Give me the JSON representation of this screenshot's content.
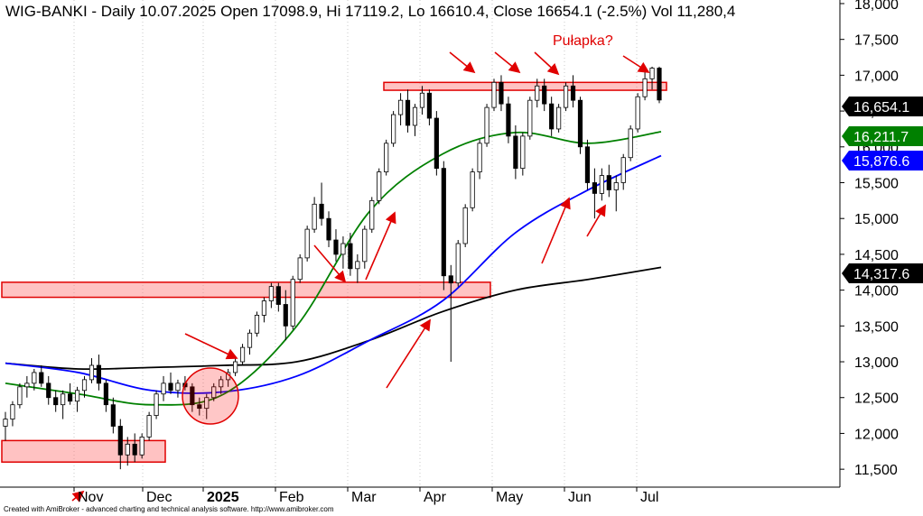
{
  "chart_data": {
    "type": "candlestick",
    "title": "WIG-BANKI - Daily 10.07.2025 Open 17098.9, Hi 17119.2, Lo 16610.4, Close 16654.1 (-2.5%) Vol 11,280,4",
    "footer": "Created with AmiBroker - advanced charting and technical analysis software. http://www.amibroker.com",
    "annotation": "Pułapka?",
    "ylim": [
      11250,
      18050
    ],
    "yticks": [
      {
        "value": 11500,
        "label": "11,500"
      },
      {
        "value": 12000,
        "label": "12,000"
      },
      {
        "value": 12500,
        "label": "12,500"
      },
      {
        "value": 13000,
        "label": "13,000"
      },
      {
        "value": 13500,
        "label": "13,500"
      },
      {
        "value": 14000,
        "label": "14,000"
      },
      {
        "value": 14500,
        "label": "14,500"
      },
      {
        "value": 15000,
        "label": "15,000"
      },
      {
        "value": 15500,
        "label": "15,500"
      },
      {
        "value": 16000,
        "label": "16,000"
      },
      {
        "value": 16500,
        "label": "16,500"
      },
      {
        "value": 17000,
        "label": "17,000"
      },
      {
        "value": 17500,
        "label": "17,500"
      },
      {
        "value": 18000,
        "label": "18,000"
      }
    ],
    "xticks": [
      {
        "label": "Nov",
        "bold": false
      },
      {
        "label": "Dec",
        "bold": false
      },
      {
        "label": "2025",
        "bold": true
      },
      {
        "label": "Feb",
        "bold": false
      },
      {
        "label": "Mar",
        "bold": false
      },
      {
        "label": "Apr",
        "bold": false
      },
      {
        "label": "May",
        "bold": false
      },
      {
        "label": "Jun",
        "bold": false
      },
      {
        "label": "Jul",
        "bold": false
      }
    ],
    "price_badges": [
      {
        "label": "16,654.1",
        "value": 16654.1,
        "bg": "#000000",
        "fg": "#ffffff"
      },
      {
        "label": "16,211.7",
        "value": 16211.7,
        "bg": "#008000",
        "fg": "#ffffff"
      },
      {
        "label": "15,876.6",
        "value": 15876.6,
        "bg": "#0000ff",
        "fg": "#ffffff"
      },
      {
        "label": "14,317.6",
        "value": 14317.6,
        "bg": "#000000",
        "fg": "#ffffff"
      }
    ],
    "zones": [
      {
        "ylow": 16790,
        "yhigh": 16900
      },
      {
        "ylow": 13900,
        "yhigh": 14110
      },
      {
        "ylow": 11600,
        "yhigh": 11900
      }
    ],
    "series": [
      {
        "kind": "moving-average",
        "color": "#000000",
        "values": [
          12980,
          12900,
          12920,
          12950,
          13000,
          13300,
          13700,
          14000,
          14150,
          14317.6
        ]
      },
      {
        "kind": "moving-average",
        "color": "#0000ff",
        "values": [
          12980,
          12850,
          12600,
          12580,
          12800,
          13300,
          13850,
          14800,
          15400,
          15876.6
        ]
      },
      {
        "kind": "moving-average",
        "color": "#008000",
        "values": [
          12700,
          12550,
          12400,
          12550,
          13500,
          15100,
          15900,
          16200,
          16050,
          16211.7
        ]
      }
    ],
    "candles": [
      {
        "o": 12100,
        "h": 12300,
        "l": 11900,
        "c": 12200
      },
      {
        "o": 12200,
        "h": 12450,
        "l": 12100,
        "c": 12400
      },
      {
        "o": 12400,
        "h": 12700,
        "l": 12350,
        "c": 12650
      },
      {
        "o": 12650,
        "h": 12800,
        "l": 12500,
        "c": 12700
      },
      {
        "o": 12700,
        "h": 12900,
        "l": 12600,
        "c": 12850
      },
      {
        "o": 12850,
        "h": 12950,
        "l": 12650,
        "c": 12700
      },
      {
        "o": 12700,
        "h": 12800,
        "l": 12400,
        "c": 12500
      },
      {
        "o": 12500,
        "h": 12600,
        "l": 12300,
        "c": 12400
      },
      {
        "o": 12400,
        "h": 12600,
        "l": 12200,
        "c": 12550
      },
      {
        "o": 12550,
        "h": 12700,
        "l": 12400,
        "c": 12450
      },
      {
        "o": 12450,
        "h": 12650,
        "l": 12300,
        "c": 12600
      },
      {
        "o": 12600,
        "h": 12800,
        "l": 12500,
        "c": 12750
      },
      {
        "o": 12750,
        "h": 13050,
        "l": 12700,
        "c": 12950
      },
      {
        "o": 12950,
        "h": 13100,
        "l": 12600,
        "c": 12700
      },
      {
        "o": 12700,
        "h": 12750,
        "l": 12300,
        "c": 12400
      },
      {
        "o": 12400,
        "h": 12500,
        "l": 12000,
        "c": 12100
      },
      {
        "o": 12100,
        "h": 12200,
        "l": 11500,
        "c": 11700
      },
      {
        "o": 11700,
        "h": 11950,
        "l": 11550,
        "c": 11850
      },
      {
        "o": 11850,
        "h": 12000,
        "l": 11600,
        "c": 11700
      },
      {
        "o": 11700,
        "h": 12000,
        "l": 11650,
        "c": 11950
      },
      {
        "o": 11950,
        "h": 12300,
        "l": 11900,
        "c": 12250
      },
      {
        "o": 12250,
        "h": 12600,
        "l": 12200,
        "c": 12550
      },
      {
        "o": 12550,
        "h": 12800,
        "l": 12450,
        "c": 12700
      },
      {
        "o": 12700,
        "h": 12850,
        "l": 12550,
        "c": 12600
      },
      {
        "o": 12600,
        "h": 12750,
        "l": 12500,
        "c": 12700
      },
      {
        "o": 12700,
        "h": 12800,
        "l": 12600,
        "c": 12650
      },
      {
        "o": 12650,
        "h": 12700,
        "l": 12300,
        "c": 12400
      },
      {
        "o": 12400,
        "h": 12500,
        "l": 12250,
        "c": 12350
      },
      {
        "o": 12350,
        "h": 12550,
        "l": 12200,
        "c": 12500
      },
      {
        "o": 12500,
        "h": 12700,
        "l": 12450,
        "c": 12650
      },
      {
        "o": 12650,
        "h": 12800,
        "l": 12550,
        "c": 12750
      },
      {
        "o": 12750,
        "h": 12900,
        "l": 12650,
        "c": 12850
      },
      {
        "o": 12850,
        "h": 13050,
        "l": 12800,
        "c": 13000
      },
      {
        "o": 13000,
        "h": 13250,
        "l": 12950,
        "c": 13200
      },
      {
        "o": 13200,
        "h": 13450,
        "l": 13100,
        "c": 13400
      },
      {
        "o": 13400,
        "h": 13700,
        "l": 13350,
        "c": 13650
      },
      {
        "o": 13650,
        "h": 13900,
        "l": 13550,
        "c": 13850
      },
      {
        "o": 13850,
        "h": 14100,
        "l": 13750,
        "c": 14050
      },
      {
        "o": 14050,
        "h": 14100,
        "l": 13700,
        "c": 13800
      },
      {
        "o": 13800,
        "h": 14000,
        "l": 13300,
        "c": 13500
      },
      {
        "o": 13500,
        "h": 14200,
        "l": 13450,
        "c": 14150
      },
      {
        "o": 14150,
        "h": 14500,
        "l": 14100,
        "c": 14450
      },
      {
        "o": 14450,
        "h": 14900,
        "l": 14400,
        "c": 14850
      },
      {
        "o": 14850,
        "h": 15300,
        "l": 14800,
        "c": 15200
      },
      {
        "o": 15200,
        "h": 15500,
        "l": 14900,
        "c": 15000
      },
      {
        "o": 15000,
        "h": 15100,
        "l": 14600,
        "c": 14700
      },
      {
        "o": 14700,
        "h": 14850,
        "l": 14400,
        "c": 14500
      },
      {
        "o": 14500,
        "h": 14750,
        "l": 14300,
        "c": 14650
      },
      {
        "o": 14650,
        "h": 14800,
        "l": 14200,
        "c": 14300
      },
      {
        "o": 14300,
        "h": 14500,
        "l": 14100,
        "c": 14400
      },
      {
        "o": 14400,
        "h": 14900,
        "l": 14300,
        "c": 14850
      },
      {
        "o": 14850,
        "h": 15300,
        "l": 14800,
        "c": 15250
      },
      {
        "o": 15250,
        "h": 15700,
        "l": 15200,
        "c": 15650
      },
      {
        "o": 15650,
        "h": 16100,
        "l": 15600,
        "c": 16050
      },
      {
        "o": 16050,
        "h": 16500,
        "l": 16000,
        "c": 16450
      },
      {
        "o": 16450,
        "h": 16750,
        "l": 16300,
        "c": 16650
      },
      {
        "o": 16650,
        "h": 16800,
        "l": 16200,
        "c": 16300
      },
      {
        "o": 16300,
        "h": 16600,
        "l": 16150,
        "c": 16550
      },
      {
        "o": 16550,
        "h": 16850,
        "l": 16450,
        "c": 16750
      },
      {
        "o": 16750,
        "h": 16800,
        "l": 16300,
        "c": 16400
      },
      {
        "o": 16400,
        "h": 16500,
        "l": 15600,
        "c": 15700
      },
      {
        "o": 15700,
        "h": 15800,
        "l": 14000,
        "c": 14200
      },
      {
        "o": 14200,
        "h": 14350,
        "l": 13000,
        "c": 14100
      },
      {
        "o": 14100,
        "h": 14700,
        "l": 14050,
        "c": 14650
      },
      {
        "o": 14650,
        "h": 15200,
        "l": 14600,
        "c": 15150
      },
      {
        "o": 15150,
        "h": 15700,
        "l": 15100,
        "c": 15650
      },
      {
        "o": 15650,
        "h": 16100,
        "l": 15550,
        "c": 16050
      },
      {
        "o": 16050,
        "h": 16600,
        "l": 16000,
        "c": 16550
      },
      {
        "o": 16550,
        "h": 16950,
        "l": 16500,
        "c": 16900
      },
      {
        "o": 16900,
        "h": 17000,
        "l": 16500,
        "c": 16600
      },
      {
        "o": 16600,
        "h": 16700,
        "l": 16050,
        "c": 16150
      },
      {
        "o": 16150,
        "h": 16300,
        "l": 15550,
        "c": 15700
      },
      {
        "o": 15700,
        "h": 16200,
        "l": 15600,
        "c": 16150
      },
      {
        "o": 16150,
        "h": 16700,
        "l": 16100,
        "c": 16650
      },
      {
        "o": 16650,
        "h": 16950,
        "l": 16550,
        "c": 16850
      },
      {
        "o": 16850,
        "h": 16950,
        "l": 16500,
        "c": 16600
      },
      {
        "o": 16600,
        "h": 16700,
        "l": 16150,
        "c": 16250
      },
      {
        "o": 16250,
        "h": 16600,
        "l": 16200,
        "c": 16550
      },
      {
        "o": 16550,
        "h": 16900,
        "l": 16500,
        "c": 16850
      },
      {
        "o": 16850,
        "h": 17000,
        "l": 16550,
        "c": 16650
      },
      {
        "o": 16650,
        "h": 16700,
        "l": 15900,
        "c": 16000
      },
      {
        "o": 16000,
        "h": 16100,
        "l": 15400,
        "c": 15500
      },
      {
        "o": 15500,
        "h": 15700,
        "l": 15000,
        "c": 15350
      },
      {
        "o": 15350,
        "h": 15700,
        "l": 15250,
        "c": 15600
      },
      {
        "o": 15600,
        "h": 15750,
        "l": 15300,
        "c": 15400
      },
      {
        "o": 15400,
        "h": 15600,
        "l": 15100,
        "c": 15500
      },
      {
        "o": 15500,
        "h": 15900,
        "l": 15400,
        "c": 15850
      },
      {
        "o": 15850,
        "h": 16300,
        "l": 15800,
        "c": 16250
      },
      {
        "o": 16250,
        "h": 16750,
        "l": 16200,
        "c": 16700
      },
      {
        "o": 16700,
        "h": 17050,
        "l": 16650,
        "c": 16950
      },
      {
        "o": 16950,
        "h": 17119.2,
        "l": 16800,
        "c": 17098.9
      },
      {
        "o": 17098.9,
        "h": 17119.2,
        "l": 16610.4,
        "c": 16654.1
      }
    ]
  }
}
